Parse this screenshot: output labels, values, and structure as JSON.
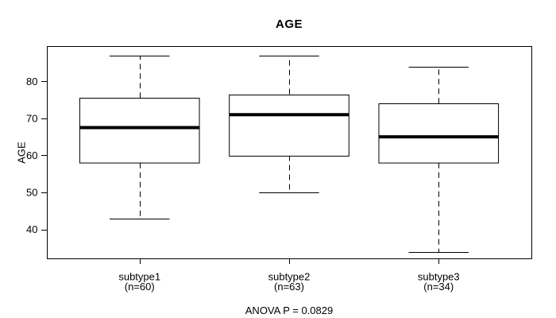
{
  "chart_data": {
    "type": "boxplot",
    "title": "AGE",
    "ylabel": "AGE",
    "xlabel": "",
    "annotation": "ANOVA P = 0.0829",
    "ylim": [
      32.2,
      89.5
    ],
    "yticks": [
      40,
      50,
      60,
      70,
      80
    ],
    "grid": false,
    "legend": null,
    "groups": [
      {
        "label": "subtype1",
        "sublabel": "(n=60)",
        "whisker_low": 43,
        "q1": 58,
        "median": 67.5,
        "q3": 75.5,
        "whisker_high": 87,
        "outliers": []
      },
      {
        "label": "subtype2",
        "sublabel": "(n=63)",
        "whisker_low": 50,
        "q1": 60,
        "median": 71,
        "q3": 76.5,
        "whisker_high": 87,
        "outliers": []
      },
      {
        "label": "subtype3",
        "sublabel": "(n=34)",
        "whisker_low": 34,
        "q1": 58,
        "median": 65,
        "q3": 74,
        "whisker_high": 84,
        "outliers": []
      }
    ],
    "colors": {
      "line": "#000000",
      "box_fill": "#ffffff",
      "background": "#ffffff"
    }
  }
}
